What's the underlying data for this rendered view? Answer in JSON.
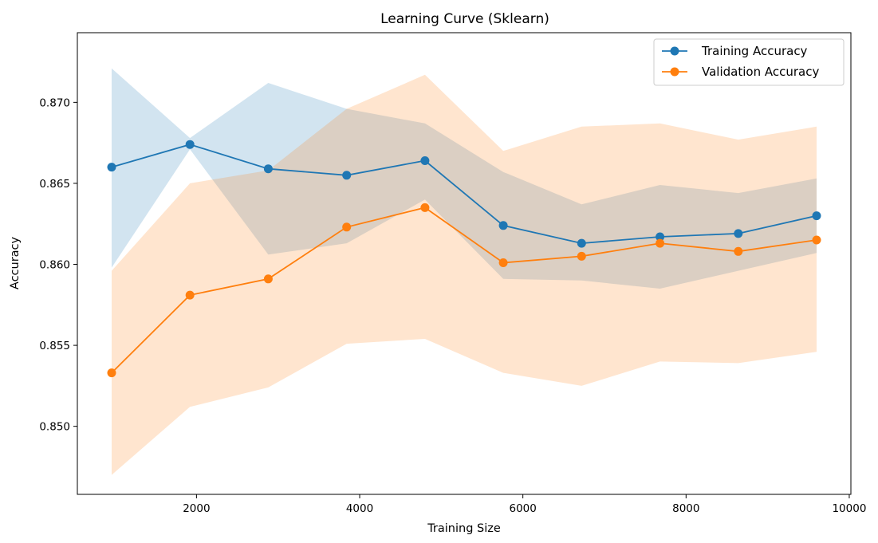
{
  "chart_data": {
    "type": "line",
    "title": "Learning Curve (Sklearn)",
    "xlabel": "Training Size",
    "ylabel": "Accuracy",
    "xlim": [
      540,
      10020
    ],
    "ylim": [
      0.8458,
      0.8743
    ],
    "x_ticks": [
      2000,
      4000,
      6000,
      8000,
      10000
    ],
    "y_ticks": [
      0.85,
      0.855,
      0.86,
      0.865,
      0.87
    ],
    "grid": false,
    "legend_position": "top-right",
    "x": [
      960,
      1920,
      2880,
      3840,
      4800,
      5760,
      6720,
      7680,
      8640,
      9600
    ],
    "series": [
      {
        "name": "Training Accuracy",
        "color": "#1f77b4",
        "fill_color": "#1f77b4",
        "values": [
          0.866,
          0.8674,
          0.8659,
          0.8655,
          0.8664,
          0.8624,
          0.8613,
          0.8617,
          0.8619,
          0.863
        ],
        "upper": [
          0.8721,
          0.8678,
          0.8712,
          0.8696,
          0.8687,
          0.8657,
          0.8637,
          0.8649,
          0.8644,
          0.8653
        ],
        "lower": [
          0.8598,
          0.8671,
          0.8606,
          0.8613,
          0.864,
          0.8591,
          0.859,
          0.8585,
          0.8596,
          0.8607
        ]
      },
      {
        "name": "Validation Accuracy",
        "color": "#ff7f0e",
        "fill_color": "#ff7f0e",
        "values": [
          0.8533,
          0.8581,
          0.8591,
          0.8623,
          0.8635,
          0.8601,
          0.8605,
          0.8613,
          0.8608,
          0.8615
        ],
        "upper": [
          0.8596,
          0.865,
          0.8658,
          0.8696,
          0.8717,
          0.867,
          0.8685,
          0.8687,
          0.8677,
          0.8685
        ],
        "lower": [
          0.847,
          0.8512,
          0.8524,
          0.8551,
          0.8554,
          0.8533,
          0.8525,
          0.854,
          0.8539,
          0.8546
        ]
      }
    ]
  }
}
